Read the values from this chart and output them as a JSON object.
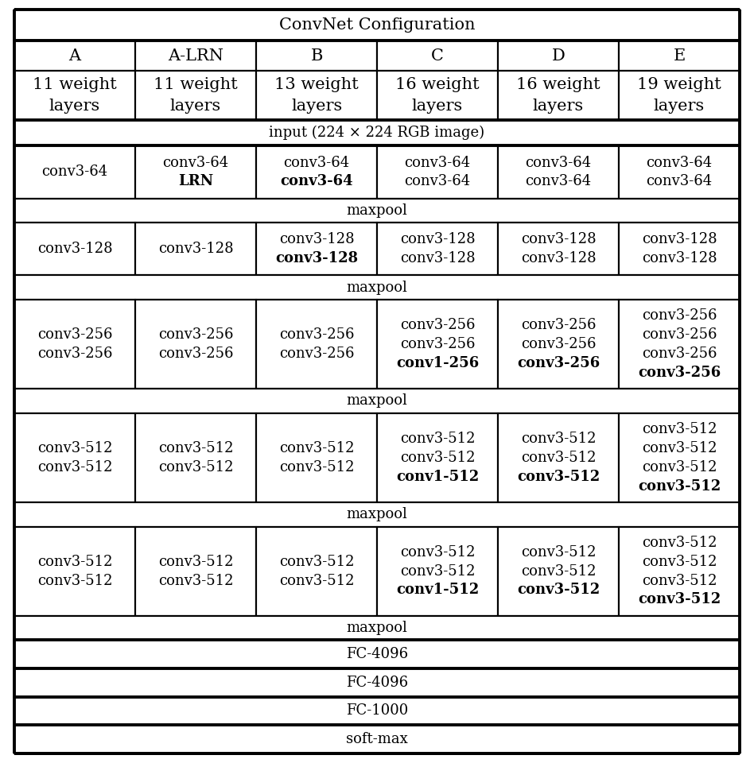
{
  "title": "ConvNet Configuration",
  "columns": [
    "A",
    "A-LRN",
    "B",
    "C",
    "D",
    "E"
  ],
  "weight_layers": [
    "11 weight\nlayers",
    "11 weight\nlayers",
    "13 weight\nlayers",
    "16 weight\nlayers",
    "16 weight\nlayers",
    "19 weight\nlayers"
  ],
  "input_row": "input (224 × 224 RGB image)",
  "bg_color": "#ffffff",
  "text_color": "#000000",
  "font_family": "DejaVu Serif",
  "title_fontsize": 15,
  "header_fontsize": 15,
  "cell_fontsize": 13,
  "maxpool_fontsize": 13,
  "fc_fontsize": 13,
  "thin_lw": 1.5,
  "thick_lw": 2.8,
  "block1_data": [
    [
      [
        "conv3-64",
        false
      ]
    ],
    [
      [
        "conv3-64",
        false
      ],
      [
        "LRN",
        true
      ]
    ],
    [
      [
        "conv3-64",
        false
      ],
      [
        "conv3-64",
        true
      ]
    ],
    [
      [
        "conv3-64",
        false
      ],
      [
        "conv3-64",
        false
      ]
    ],
    [
      [
        "conv3-64",
        false
      ],
      [
        "conv3-64",
        false
      ]
    ],
    [
      [
        "conv3-64",
        false
      ],
      [
        "conv3-64",
        false
      ]
    ]
  ],
  "block2_data": [
    [
      [
        "conv3-128",
        false
      ]
    ],
    [
      [
        "conv3-128",
        false
      ]
    ],
    [
      [
        "conv3-128",
        false
      ],
      [
        "conv3-128",
        true
      ]
    ],
    [
      [
        "conv3-128",
        false
      ],
      [
        "conv3-128",
        false
      ]
    ],
    [
      [
        "conv3-128",
        false
      ],
      [
        "conv3-128",
        false
      ]
    ],
    [
      [
        "conv3-128",
        false
      ],
      [
        "conv3-128",
        false
      ]
    ]
  ],
  "block3_data": [
    [
      [
        "conv3-256",
        false
      ],
      [
        "conv3-256",
        false
      ]
    ],
    [
      [
        "conv3-256",
        false
      ],
      [
        "conv3-256",
        false
      ]
    ],
    [
      [
        "conv3-256",
        false
      ],
      [
        "conv3-256",
        false
      ]
    ],
    [
      [
        "conv3-256",
        false
      ],
      [
        "conv3-256",
        false
      ],
      [
        "conv1-256",
        true
      ]
    ],
    [
      [
        "conv3-256",
        false
      ],
      [
        "conv3-256",
        false
      ],
      [
        "conv3-256",
        true
      ]
    ],
    [
      [
        "conv3-256",
        false
      ],
      [
        "conv3-256",
        false
      ],
      [
        "conv3-256",
        false
      ],
      [
        "conv3-256",
        true
      ]
    ]
  ],
  "block4_data": [
    [
      [
        "conv3-512",
        false
      ],
      [
        "conv3-512",
        false
      ]
    ],
    [
      [
        "conv3-512",
        false
      ],
      [
        "conv3-512",
        false
      ]
    ],
    [
      [
        "conv3-512",
        false
      ],
      [
        "conv3-512",
        false
      ]
    ],
    [
      [
        "conv3-512",
        false
      ],
      [
        "conv3-512",
        false
      ],
      [
        "conv1-512",
        true
      ]
    ],
    [
      [
        "conv3-512",
        false
      ],
      [
        "conv3-512",
        false
      ],
      [
        "conv3-512",
        true
      ]
    ],
    [
      [
        "conv3-512",
        false
      ],
      [
        "conv3-512",
        false
      ],
      [
        "conv3-512",
        false
      ],
      [
        "conv3-512",
        true
      ]
    ]
  ],
  "block5_data": [
    [
      [
        "conv3-512",
        false
      ],
      [
        "conv3-512",
        false
      ]
    ],
    [
      [
        "conv3-512",
        false
      ],
      [
        "conv3-512",
        false
      ]
    ],
    [
      [
        "conv3-512",
        false
      ],
      [
        "conv3-512",
        false
      ]
    ],
    [
      [
        "conv3-512",
        false
      ],
      [
        "conv3-512",
        false
      ],
      [
        "conv1-512",
        true
      ]
    ],
    [
      [
        "conv3-512",
        false
      ],
      [
        "conv3-512",
        false
      ],
      [
        "conv3-512",
        true
      ]
    ],
    [
      [
        "conv3-512",
        false
      ],
      [
        "conv3-512",
        false
      ],
      [
        "conv3-512",
        false
      ],
      [
        "conv3-512",
        true
      ]
    ]
  ]
}
